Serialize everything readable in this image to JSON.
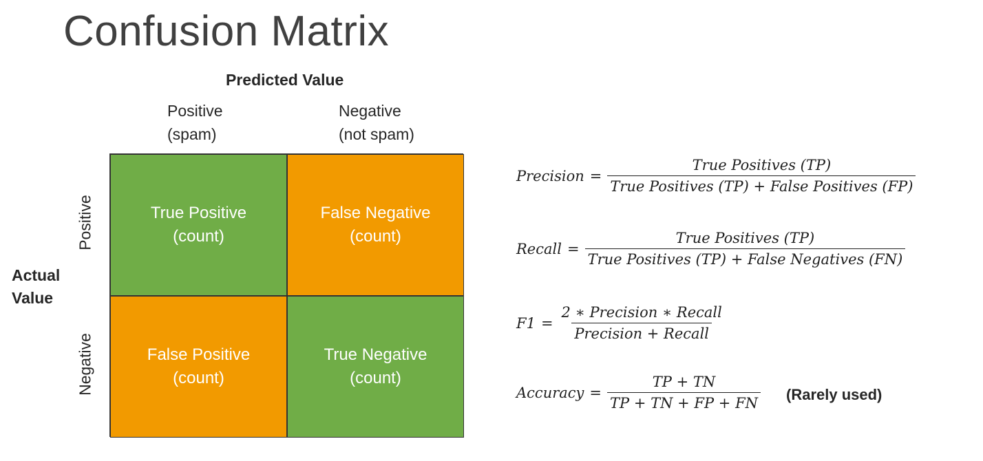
{
  "title": "Confusion Matrix",
  "predicted_heading": "Predicted Value",
  "columns": [
    {
      "line1": "Positive",
      "line2": "(spam)"
    },
    {
      "line1": "Negative",
      "line2": "(not spam)"
    }
  ],
  "actual_heading": {
    "line1": "Actual",
    "line2": "Value"
  },
  "rows": [
    "Positive",
    "Negative"
  ],
  "cells": [
    {
      "line1": "True Positive",
      "line2": "(count)",
      "color": "#70ad47"
    },
    {
      "line1": "False Negative",
      "line2": "(count)",
      "color": "#f29a00"
    },
    {
      "line1": "False Positive",
      "line2": "(count)",
      "color": "#f29a00"
    },
    {
      "line1": "True Negative",
      "line2": "(count)",
      "color": "#70ad47"
    }
  ],
  "formulas": {
    "precision": {
      "lhs": "Precision",
      "eq": "=",
      "num": "True Positives (TP)",
      "den": "True Positives (TP) + False Positives (FP)"
    },
    "recall": {
      "lhs": "Recall",
      "eq": "=",
      "num": "True Positives (TP)",
      "den": "True Positives (TP) + False Negatives (FN)"
    },
    "f1": {
      "lhs": "F1",
      "eq": "=",
      "num": "2 ∗ Precision ∗ Recall",
      "den": "Precision + Recall"
    },
    "accuracy": {
      "lhs": "Accuracy",
      "eq": "=",
      "num": "TP + TN",
      "den": "TP + TN + FP + FN"
    }
  },
  "accuracy_note": "(Rarely used)"
}
